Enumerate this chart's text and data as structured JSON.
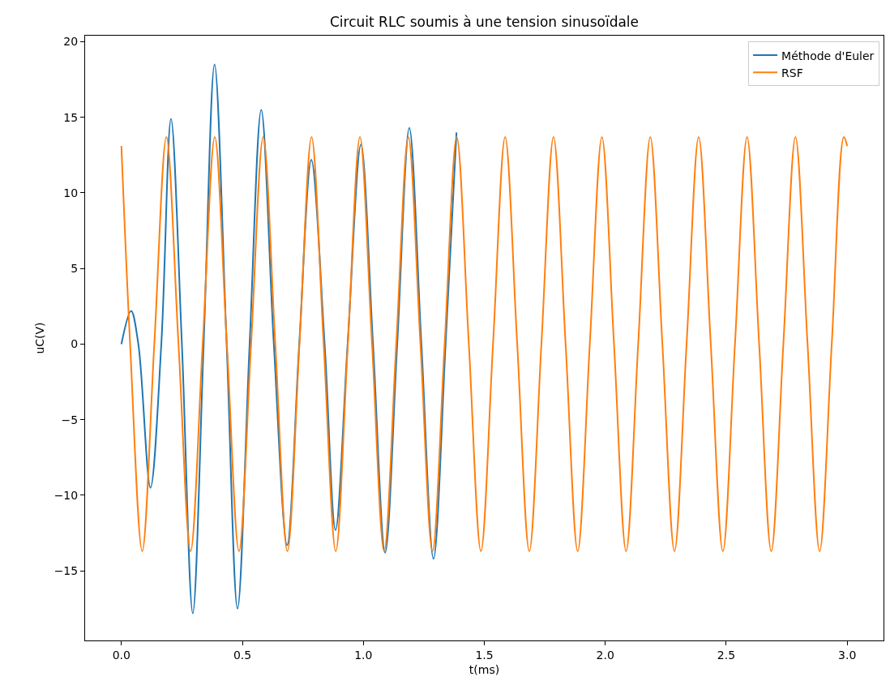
{
  "chart_data": {
    "type": "line",
    "title": "Circuit RLC soumis à une tension sinusoïdale",
    "xlabel": "t(ms)",
    "ylabel": "uC(V)",
    "xlim": [
      -0.15,
      3.15
    ],
    "ylim": [
      -19.6,
      20.4
    ],
    "xticks": [
      {
        "value": 0,
        "label": "0.0"
      },
      {
        "value": 0.5,
        "label": "0.5"
      },
      {
        "value": 1,
        "label": "1.0"
      },
      {
        "value": 1.5,
        "label": "1.5"
      },
      {
        "value": 2,
        "label": "2.0"
      },
      {
        "value": 2.5,
        "label": "2.5"
      },
      {
        "value": 3,
        "label": "3.0"
      }
    ],
    "yticks": [
      -15,
      -10,
      -5,
      0,
      5,
      10,
      15,
      20
    ],
    "legend": "top right",
    "marker": "none",
    "line_style": "solid",
    "series": [
      {
        "name": "Méthode d'Euler",
        "color": "#1f77b4",
        "x": [
          0,
          0.04,
          0.07,
          0.12,
          0.165,
          0.205,
          0.25,
          0.295,
          0.34,
          0.385,
          0.435,
          0.48,
          0.53,
          0.578,
          0.63,
          0.685,
          0.735,
          0.785,
          0.84,
          0.885,
          0.935,
          0.99,
          1.04,
          1.09,
          1.14,
          1.19,
          1.24,
          1.29,
          1.34,
          1.385
        ],
        "values": [
          0,
          2.2,
          0,
          -9.5,
          0,
          14.9,
          0,
          -17.8,
          0,
          18.5,
          0,
          -17.5,
          0,
          15.5,
          0,
          -13.3,
          0,
          12.2,
          0,
          -12.3,
          0,
          13.2,
          0,
          -13.8,
          0,
          14.3,
          0,
          -14.2,
          0,
          14.0
        ]
      },
      {
        "name": "RSF",
        "color": "#ff7f0e",
        "x": [
          0,
          0.036,
          0.086,
          0.136,
          0.186,
          0.236,
          0.286,
          0.336,
          0.386,
          0.436,
          0.486,
          0.536,
          0.586,
          0.636,
          0.686,
          0.736,
          0.786,
          0.836,
          0.886,
          0.936,
          0.986,
          1.036,
          1.086,
          1.136,
          1.186,
          1.236,
          1.286,
          1.336,
          1.386,
          1.436,
          1.486,
          1.536,
          1.586,
          1.636,
          1.686,
          1.736,
          1.786,
          1.836,
          1.886,
          1.936,
          1.986,
          2.036,
          2.086,
          2.136,
          2.186,
          2.236,
          2.286,
          2.336,
          2.386,
          2.436,
          2.486,
          2.536,
          2.586,
          2.636,
          2.686,
          2.736,
          2.786,
          2.836,
          2.886,
          2.936,
          2.986,
          3.0
        ],
        "values": [
          13.1,
          0,
          -13.7,
          0,
          13.7,
          0,
          -13.7,
          0,
          13.7,
          0,
          -13.7,
          0,
          13.7,
          0,
          -13.7,
          0,
          13.7,
          0,
          -13.7,
          0,
          13.7,
          0,
          -13.7,
          0,
          13.7,
          0,
          -13.7,
          0,
          13.7,
          0,
          -13.7,
          0,
          13.7,
          0,
          -13.7,
          0,
          13.7,
          0,
          -13.7,
          0,
          13.7,
          0,
          -13.7,
          0,
          13.7,
          0,
          -13.7,
          0,
          13.7,
          0,
          -13.7,
          0,
          13.7,
          0,
          -13.7,
          0,
          13.7,
          0,
          -13.7,
          0,
          13.7,
          13.1
        ]
      }
    ]
  }
}
